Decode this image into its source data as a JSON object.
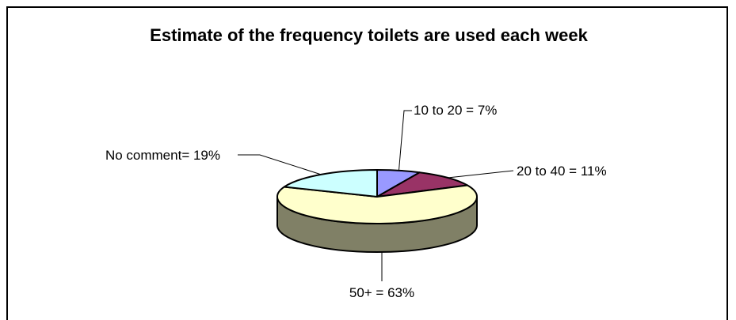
{
  "chart_data": {
    "type": "pie",
    "title": "Estimate of the frequency toilets are used each week",
    "slices": [
      {
        "label": "10 to 20 = 7%",
        "value": 7,
        "color": "#9999ff",
        "side": "#6b6bb3"
      },
      {
        "label": "20 to 40 = 11%",
        "value": 11,
        "color": "#993366",
        "side": "#6b2447"
      },
      {
        "label": "50+ = 63%",
        "value": 63,
        "color": "#ffffcc",
        "side": "#808066"
      },
      {
        "label": "No comment= 19%",
        "value": 19,
        "color": "#ccffff",
        "side": "#8fb3b3"
      }
    ]
  }
}
